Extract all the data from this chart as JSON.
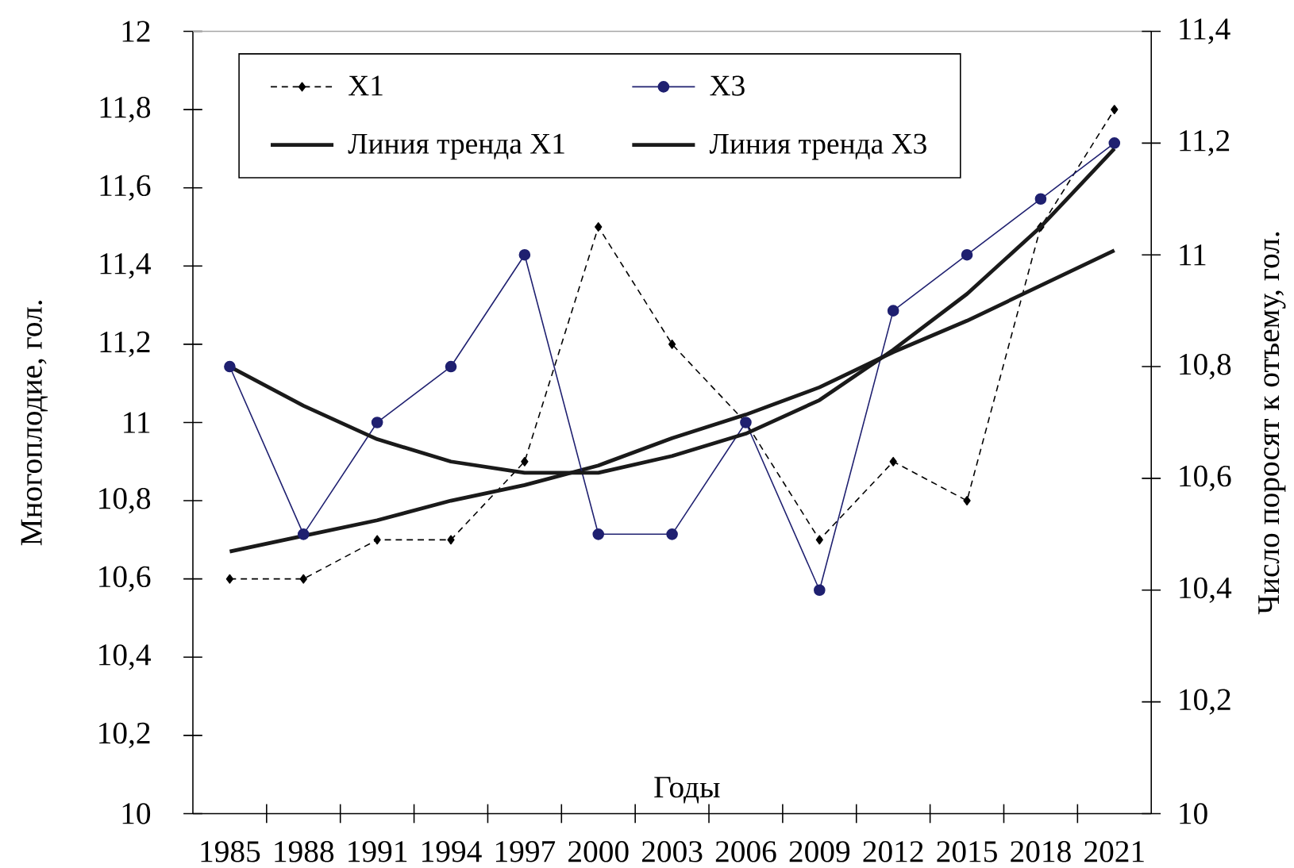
{
  "chart_data": {
    "type": "line",
    "xlabel": "Годы",
    "ylabel": "Многоплодие, гол.",
    "y2label": "Число поросят к отъему, гол.",
    "categories": [
      "1985",
      "1988",
      "1991",
      "1994",
      "1997",
      "2000",
      "2003",
      "2006",
      "2009",
      "2012",
      "2015",
      "2018",
      "2021"
    ],
    "series": [
      {
        "name": "X1",
        "color": "#000000",
        "marker": "diamond",
        "line_style": "dashed",
        "values": [
          10.6,
          10.6,
          10.7,
          10.7,
          10.9,
          11.5,
          11.2,
          11.0,
          10.7,
          10.9,
          10.8,
          11.5,
          11.8
        ]
      },
      {
        "name": "X3",
        "color": "#1f2070",
        "axis": "y2",
        "marker": "circle",
        "line_style": "solid",
        "values": [
          10.8,
          10.5,
          10.7,
          10.8,
          11.0,
          10.5,
          10.5,
          10.7,
          10.4,
          10.9,
          11.0,
          11.1,
          11.2
        ]
      },
      {
        "name": "Линия тренда X1",
        "color": "#1a1a1a",
        "marker": "none",
        "line_style": "solid",
        "values": [
          10.67,
          10.71,
          10.75,
          10.8,
          10.84,
          10.89,
          10.96,
          11.02,
          11.09,
          11.18,
          11.26,
          11.35,
          11.44
        ]
      },
      {
        "name": "Линия тренда X3",
        "color": "#1a1a1a",
        "axis": "y2",
        "marker": "none",
        "line_style": "solid",
        "values": [
          10.8,
          10.73,
          10.67,
          10.63,
          10.61,
          10.61,
          10.64,
          10.68,
          10.74,
          10.83,
          10.93,
          11.05,
          11.19
        ]
      }
    ],
    "ylim": [
      10,
      12
    ],
    "yticks": [
      10,
      {
        "value": 10.2,
        "label": "10,2"
      },
      {
        "value": 10.4,
        "label": "10,4"
      },
      {
        "value": 10.6,
        "label": "10,6"
      },
      {
        "value": 10.8,
        "label": "10,8"
      },
      11,
      {
        "value": 11.2,
        "label": "11,2"
      },
      {
        "value": 11.4,
        "label": "11,4"
      },
      {
        "value": 11.6,
        "label": "11,6"
      },
      {
        "value": 11.8,
        "label": "11,8"
      },
      12
    ],
    "y2lim": [
      10,
      11.4
    ],
    "y2ticks": [
      10,
      {
        "value": 10.2,
        "label": "10,2"
      },
      {
        "value": 10.4,
        "label": "10,4"
      },
      {
        "value": 10.6,
        "label": "10,6"
      },
      {
        "value": 10.8,
        "label": "10,8"
      },
      11,
      {
        "value": 11.2,
        "label": "11,2"
      },
      {
        "value": 11.4,
        "label": "11,4"
      }
    ],
    "legend": "top left"
  }
}
